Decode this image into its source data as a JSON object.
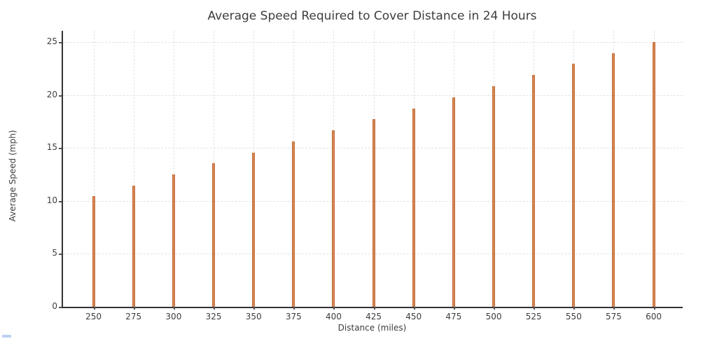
{
  "chart_data": {
    "type": "bar",
    "title": "Average Speed Required to Cover Distance in 24 Hours",
    "xlabel": "Distance (miles)",
    "ylabel": "Average Speed (mph)",
    "categories": [
      250,
      275,
      300,
      325,
      350,
      375,
      400,
      425,
      450,
      475,
      500,
      525,
      550,
      575,
      600
    ],
    "values": [
      10.42,
      11.46,
      12.5,
      13.54,
      14.58,
      15.63,
      16.67,
      17.71,
      18.75,
      19.79,
      20.83,
      21.88,
      22.92,
      23.96,
      25.0
    ],
    "y_ticks": [
      0,
      5,
      10,
      15,
      20,
      25
    ],
    "ylim": [
      0,
      26.2
    ],
    "xlim": [
      230,
      618
    ],
    "grid": "dashed both axes",
    "legend": "none",
    "colors": {
      "bar_fill": "#e08a54",
      "bar_edge": "#c46d3b",
      "grid": "#e2e2e2",
      "spine": "#333333",
      "text": "#3d3d3d",
      "artifact_blue": "#bcd0f2"
    }
  }
}
